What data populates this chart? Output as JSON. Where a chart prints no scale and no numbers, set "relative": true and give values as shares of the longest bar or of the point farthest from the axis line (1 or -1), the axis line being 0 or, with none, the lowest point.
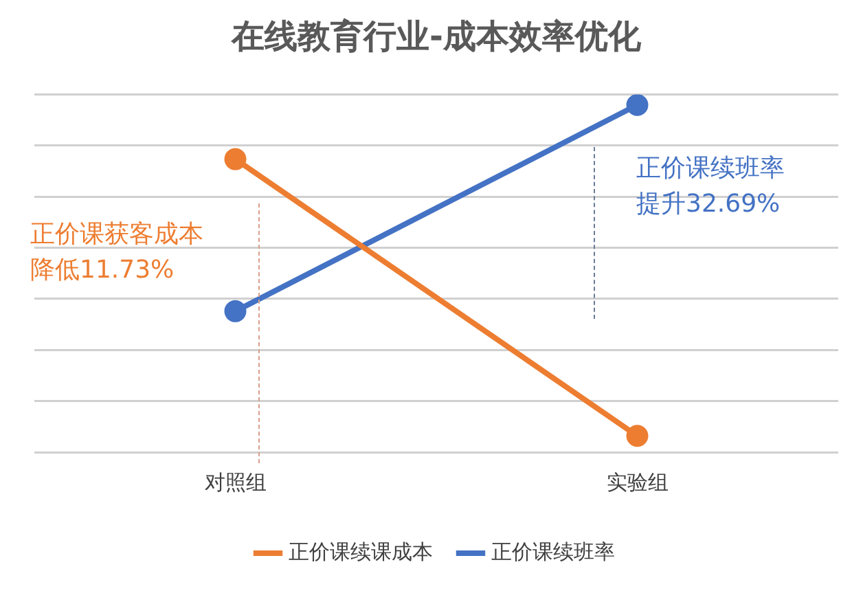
{
  "chart_data": {
    "type": "line",
    "title": "在线教育行业-成本效率优化",
    "categories": [
      "对照组",
      "实验组"
    ],
    "relative": true,
    "grid": "y",
    "legend": "bottom",
    "marker": "circle",
    "series": [
      {
        "name": "正价课续课成本",
        "color": "#ed7d31",
        "values": [
          0.844,
          0.047
        ]
      },
      {
        "name": "正价课续班率",
        "color": "#4472c4",
        "values": [
          0.406,
          1
        ]
      }
    ],
    "annotations": [
      "正价课获客成本降低11.73%",
      "正价课续班率提升32.69%"
    ]
  }
}
